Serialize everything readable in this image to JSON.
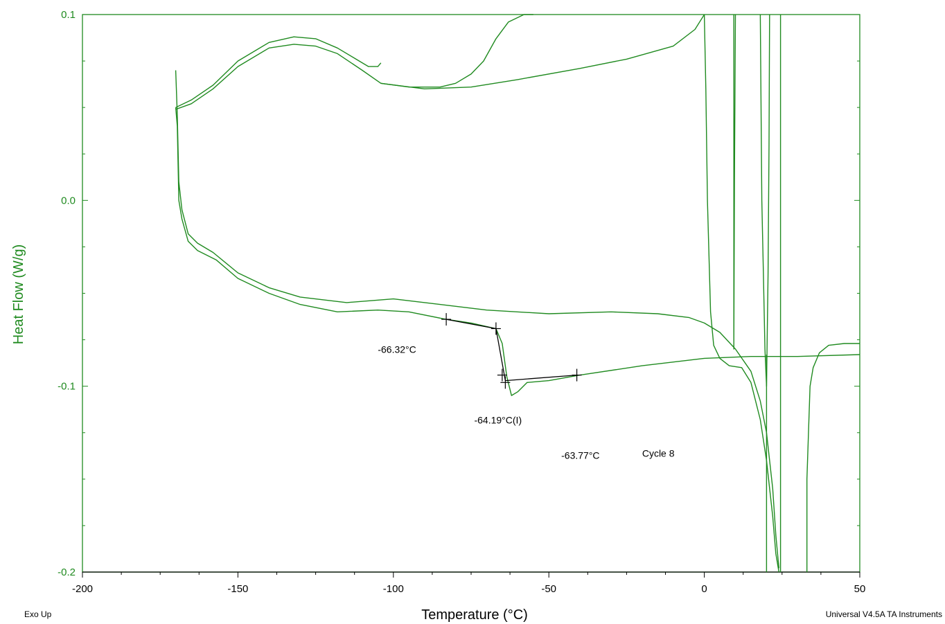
{
  "chart_data": {
    "type": "line",
    "title": "",
    "xlabel": "Temperature (°C)",
    "ylabel": "Heat Flow (W/g)",
    "xlim": [
      -200,
      50
    ],
    "ylim": [
      -0.2,
      0.1
    ],
    "x_ticks": [
      -200,
      -150,
      -100,
      -50,
      0,
      50
    ],
    "x_tick_labels": [
      "-200",
      "-150",
      "-100",
      "-50",
      "0",
      "50"
    ],
    "y_ticks": [
      0.1,
      0.0,
      -0.1,
      -0.2
    ],
    "y_tick_labels": [
      "0.1",
      "0.0",
      "-0.1",
      "-0.2"
    ],
    "grid": false,
    "colors": {
      "curve": "#1f8a1f",
      "axis_text": "#1f8a1f",
      "analysis": "#000000"
    },
    "series": [
      {
        "values": [
          [
            -170,
            0.05
          ],
          [
            -165,
            0.054
          ],
          [
            -158,
            0.062
          ],
          [
            -150,
            0.075
          ],
          [
            -140,
            0.085
          ],
          [
            -132,
            0.088
          ],
          [
            -125,
            0.087
          ],
          [
            -118,
            0.082
          ],
          [
            -112,
            0.076
          ],
          [
            -108,
            0.072
          ],
          [
            -105,
            0.072
          ],
          [
            -104,
            0.074
          ]
        ]
      },
      {
        "values": [
          [
            -170,
            0.049
          ],
          [
            -165,
            0.052
          ],
          [
            -158,
            0.06
          ],
          [
            -150,
            0.072
          ],
          [
            -140,
            0.082
          ],
          [
            -132,
            0.084
          ],
          [
            -125,
            0.083
          ],
          [
            -118,
            0.079
          ],
          [
            -110,
            0.07
          ],
          [
            -104,
            0.063
          ],
          [
            -95,
            0.061
          ],
          [
            -85,
            0.061
          ],
          [
            -80,
            0.063
          ],
          [
            -75,
            0.068
          ],
          [
            -71,
            0.075
          ],
          [
            -67,
            0.087
          ],
          [
            -63,
            0.096
          ],
          [
            -58,
            0.1
          ],
          [
            -55,
            0.1
          ]
        ]
      },
      {
        "values": [
          [
            -104,
            0.063
          ],
          [
            -90,
            0.06
          ],
          [
            -75,
            0.061
          ],
          [
            -60,
            0.065
          ],
          [
            -40,
            0.071
          ],
          [
            -25,
            0.076
          ],
          [
            -10,
            0.083
          ],
          [
            -3,
            0.092
          ],
          [
            0,
            0.1
          ]
        ]
      },
      {
        "values": [
          [
            -170,
            0.07
          ],
          [
            -169.5,
            0.046
          ],
          [
            -169,
            0.01
          ],
          [
            -168,
            -0.005
          ],
          [
            -166,
            -0.018
          ],
          [
            -163,
            -0.023
          ],
          [
            -158,
            -0.028
          ],
          [
            -150,
            -0.039
          ],
          [
            -140,
            -0.047
          ],
          [
            -130,
            -0.052
          ],
          [
            -115,
            -0.055
          ],
          [
            -100,
            -0.053
          ],
          [
            -85,
            -0.056
          ],
          [
            -70,
            -0.059
          ],
          [
            -50,
            -0.061
          ],
          [
            -30,
            -0.06
          ],
          [
            -15,
            -0.061
          ],
          [
            -5,
            -0.063
          ],
          [
            0,
            -0.066
          ],
          [
            5,
            -0.071
          ],
          [
            10,
            -0.08
          ],
          [
            15,
            -0.092
          ],
          [
            18,
            -0.108
          ],
          [
            20,
            -0.125
          ],
          [
            22,
            -0.155
          ],
          [
            23,
            -0.18
          ],
          [
            24,
            -0.198
          ]
        ]
      },
      {
        "values": [
          [
            -170,
            0.05
          ],
          [
            -169.5,
            0.04
          ],
          [
            -169,
            0.0
          ],
          [
            -168,
            -0.01
          ],
          [
            -166,
            -0.022
          ],
          [
            -163,
            -0.027
          ],
          [
            -157,
            -0.032
          ],
          [
            -150,
            -0.042
          ],
          [
            -140,
            -0.05
          ],
          [
            -130,
            -0.056
          ],
          [
            -118,
            -0.06
          ],
          [
            -105,
            -0.059
          ],
          [
            -95,
            -0.06
          ],
          [
            -83,
            -0.064
          ],
          [
            -75,
            -0.066
          ],
          [
            -67,
            -0.069
          ],
          [
            -65,
            -0.077
          ],
          [
            -63.5,
            -0.095
          ],
          [
            -62,
            -0.105
          ],
          [
            -60,
            -0.103
          ],
          [
            -57,
            -0.098
          ],
          [
            -50,
            -0.097
          ],
          [
            -40,
            -0.094
          ],
          [
            -20,
            -0.089
          ],
          [
            0,
            -0.085
          ],
          [
            15,
            -0.084
          ],
          [
            30,
            -0.084
          ],
          [
            50,
            -0.083
          ]
        ]
      },
      {
        "values": [
          [
            0,
            0.1
          ],
          [
            0.5,
            0.06
          ],
          [
            1,
            0.0
          ],
          [
            2,
            -0.06
          ],
          [
            3,
            -0.078
          ],
          [
            5,
            -0.085
          ],
          [
            8,
            -0.089
          ],
          [
            12,
            -0.09
          ],
          [
            15,
            -0.098
          ],
          [
            18,
            -0.118
          ],
          [
            20,
            -0.14
          ],
          [
            22,
            -0.17
          ],
          [
            23,
            -0.19
          ],
          [
            24,
            -0.2
          ]
        ]
      },
      {
        "values": [
          [
            9.5,
            0.1
          ],
          [
            9.5,
            -0.08
          ],
          [
            9.7,
            0.01
          ],
          [
            10,
            0.1
          ]
        ]
      },
      {
        "values": [
          [
            18,
            0.1
          ],
          [
            18.5,
            0.0
          ],
          [
            19,
            -0.04
          ],
          [
            19.5,
            -0.08
          ],
          [
            20,
            -0.1
          ],
          [
            20.5,
            -0.04
          ],
          [
            20.8,
            0.03
          ],
          [
            21,
            0.1
          ]
        ]
      },
      {
        "values": [
          [
            24.5,
            0.1
          ],
          [
            24.5,
            -0.2
          ]
        ]
      },
      {
        "values": [
          [
            33,
            -0.2
          ],
          [
            33,
            -0.15
          ],
          [
            34,
            -0.1
          ],
          [
            35,
            -0.09
          ],
          [
            37,
            -0.082
          ],
          [
            40,
            -0.078
          ],
          [
            45,
            -0.077
          ],
          [
            50,
            -0.077
          ]
        ]
      },
      {
        "values": [
          [
            20,
            -0.083
          ],
          [
            20,
            -0.2
          ]
        ]
      }
    ],
    "analysis_lines": [
      {
        "values": [
          [
            -83,
            -0.064
          ],
          [
            -67,
            -0.069
          ]
        ]
      },
      {
        "values": [
          [
            -67,
            -0.069
          ],
          [
            -64,
            -0.097
          ]
        ]
      },
      {
        "values": [
          [
            -64,
            -0.097
          ],
          [
            -41,
            -0.094
          ]
        ]
      }
    ],
    "markers": [
      {
        "x": -83,
        "y": -0.064
      },
      {
        "x": -67,
        "y": -0.069
      },
      {
        "x": -65,
        "y": -0.094
      },
      {
        "x": -64,
        "y": -0.098
      },
      {
        "x": -41,
        "y": -0.094
      }
    ],
    "annotations": [
      {
        "text": "-66.32°C",
        "x": -105,
        "y": -0.082
      },
      {
        "text": "-64.19°C(I)",
        "x": -74,
        "y": -0.12
      },
      {
        "text": "-63.77°C",
        "x": -46,
        "y": -0.139
      },
      {
        "text": "Cycle 8",
        "x": -20,
        "y": -0.138
      }
    ]
  },
  "footer": {
    "left": "Exo Up",
    "right": "Universal V4.5A TA Instruments"
  }
}
